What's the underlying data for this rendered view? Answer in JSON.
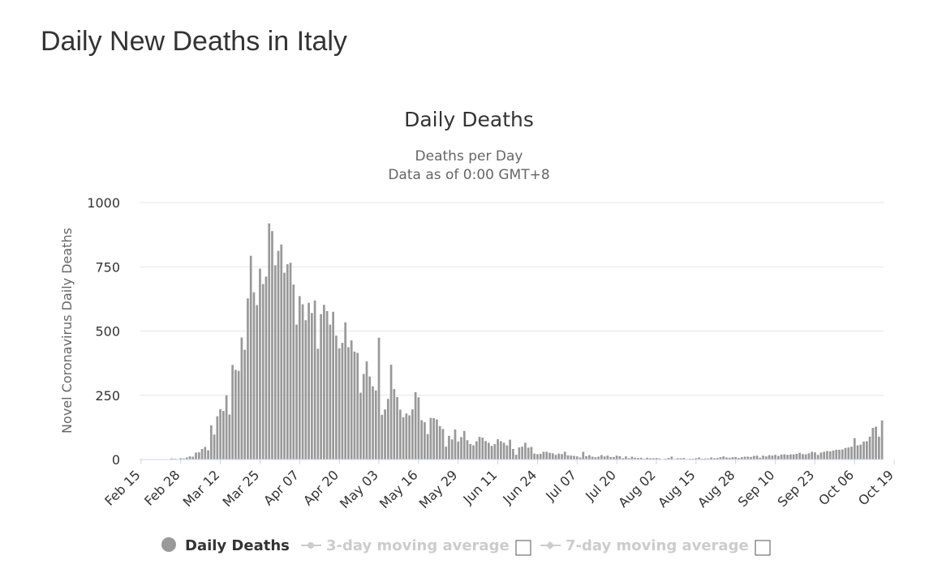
{
  "page": {
    "title": "Daily New Deaths in Italy"
  },
  "colors": {
    "bar": "#999999",
    "grid": "#e6e6e6",
    "axis_line": "#ccd6eb",
    "text": "#333333",
    "muted": "#666666",
    "legend_inactive": "#cccccc"
  },
  "chart_data": {
    "type": "bar",
    "title": "Daily Deaths",
    "subtitle_lines": [
      "Deaths per Day",
      "Data as of 0:00 GMT+8"
    ],
    "ylabel": "Novel Coronavirus Daily Deaths",
    "ylim": [
      0,
      1000
    ],
    "yticks": [
      0,
      250,
      500,
      750,
      1000
    ],
    "start_date": "2020-02-15",
    "xtick_labels": [
      "Feb 15",
      "Feb 28",
      "Mar 12",
      "Mar 25",
      "Apr 07",
      "Apr 20",
      "May 03",
      "May 16",
      "May 29",
      "Jun 11",
      "Jun 24",
      "Jul 07",
      "Jul 20",
      "Aug 02",
      "Aug 15",
      "Aug 28",
      "Sep 10",
      "Sep 23",
      "Oct 06",
      "Oct 19"
    ],
    "grid": true,
    "legend_position": "bottom",
    "series": [
      {
        "name": "Daily Deaths",
        "values": [
          0,
          0,
          0,
          0,
          0,
          0,
          0,
          1,
          1,
          0,
          4,
          3,
          2,
          5,
          4,
          8,
          12,
          11,
          27,
          28,
          41,
          49,
          36,
          133,
          97,
          168,
          196,
          189,
          250,
          175,
          368,
          349,
          345,
          475,
          427,
          627,
          793,
          651,
          601,
          743,
          683,
          712,
          919,
          889,
          756,
          812,
          837,
          727,
          760,
          766,
          681,
          525,
          636,
          604,
          542,
          610,
          570,
          619,
          431,
          566,
          602,
          578,
          525,
          575,
          482,
          433,
          454,
          534,
          437,
          464,
          420,
          415,
          260,
          333,
          382,
          323,
          285,
          269,
          474,
          174,
          195,
          236,
          369,
          274,
          243,
          194,
          165,
          179,
          172,
          195,
          262,
          242,
          153,
          145,
          99,
          162,
          161,
          156,
          130,
          119,
          50,
          92,
          78,
          117,
          70,
          87,
          111,
          75,
          60,
          55,
          71,
          88,
          85,
          72,
          65,
          53,
          60,
          79,
          71,
          65,
          55,
          77,
          41,
          18,
          47,
          50,
          65,
          46,
          49,
          23,
          21,
          22,
          30,
          30,
          26,
          24,
          18,
          23,
          21,
          30,
          16,
          15,
          14,
          12,
          8,
          30,
          13,
          17,
          11,
          9,
          11,
          17,
          12,
          15,
          10,
          10,
          15,
          13,
          5,
          12,
          5,
          11,
          7,
          6,
          7,
          3,
          7,
          5,
          5,
          6,
          4,
          1,
          3,
          6,
          11,
          2,
          5,
          5,
          6,
          2,
          3,
          3,
          5,
          8,
          3,
          4,
          4,
          8,
          5,
          6,
          9,
          12,
          8,
          7,
          9,
          10,
          6,
          9,
          11,
          11,
          10,
          14,
          15,
          7,
          15,
          12,
          17,
          15,
          18,
          14,
          19,
          20,
          18,
          20,
          20,
          22,
          26,
          21,
          20,
          24,
          30,
          28,
          18,
          27,
          30,
          33,
          32,
          35,
          38,
          38,
          39,
          45,
          47,
          50,
          83,
          55,
          58,
          70,
          71,
          89,
          123,
          128,
          89,
          152
        ]
      },
      {
        "name": "3-day moving average"
      },
      {
        "name": "7-day moving average"
      }
    ]
  }
}
